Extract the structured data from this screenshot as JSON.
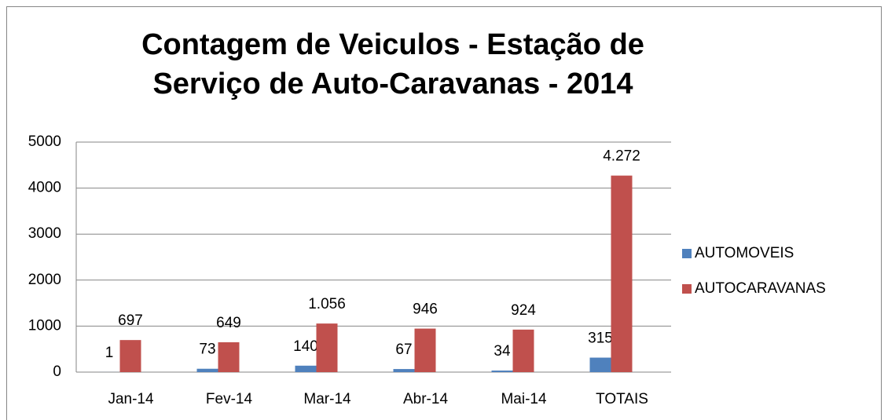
{
  "chart_data": {
    "type": "bar",
    "title": "Contagem de Veiculos - Estação de Serviço de Auto-Caravanas - 2014",
    "categories": [
      "Jan-14",
      "Fev-14",
      "Mar-14",
      "Abr-14",
      "Mai-14",
      "TOTAIS"
    ],
    "series": [
      {
        "name": "AUTOMOVEIS",
        "color": "#4f81bd",
        "values": [
          1,
          73,
          140,
          67,
          34,
          315
        ]
      },
      {
        "name": "AUTOCARAVANAS",
        "color": "#c0504d",
        "values": [
          697,
          649,
          1056,
          946,
          924,
          4272
        ],
        "value_labels": [
          "697",
          "649",
          "1.056",
          "946",
          "924",
          "4.272"
        ]
      }
    ],
    "ylim": [
      0,
      5000
    ],
    "yticks": [
      0,
      1000,
      2000,
      3000,
      4000,
      5000
    ],
    "grid": true,
    "legend": "right"
  }
}
